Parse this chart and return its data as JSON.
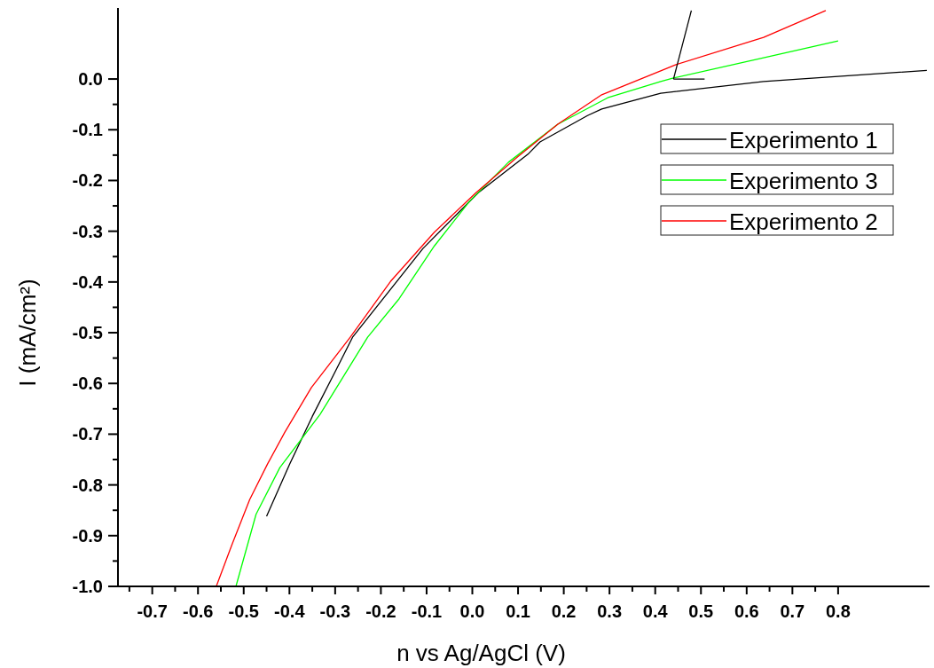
{
  "chart_data": {
    "type": "line",
    "xlabel": "n vs Ag/AgCl (V)",
    "ylabel": "I (mA/cm²)",
    "xlim": [
      -0.775,
      1.0
    ],
    "ylim": [
      -1.0,
      0.14
    ],
    "xticks": [
      {
        "value": -0.75,
        "label": null
      },
      -0.7,
      {
        "value": -0.65,
        "label": null
      },
      -0.6,
      {
        "value": -0.55,
        "label": null
      },
      -0.5,
      {
        "value": -0.45,
        "label": null
      },
      -0.4,
      {
        "value": -0.35,
        "label": null
      },
      -0.3,
      {
        "value": -0.25,
        "label": null
      },
      -0.2,
      {
        "value": -0.15,
        "label": null
      },
      -0.1,
      {
        "value": -0.05,
        "label": null
      },
      {
        "value": 0,
        "label": "0.0"
      },
      {
        "value": 0.05,
        "label": null
      },
      0.1,
      {
        "value": 0.15,
        "label": null
      },
      0.2,
      {
        "value": 0.25,
        "label": null
      },
      0.3,
      {
        "value": 0.35,
        "label": null
      },
      0.4,
      {
        "value": 0.45,
        "label": null
      },
      0.5,
      {
        "value": 0.55,
        "label": null
      },
      0.6,
      {
        "value": 0.65,
        "label": null
      },
      0.7,
      {
        "value": 0.75,
        "label": null
      },
      0.8
    ],
    "yticks": [
      {
        "value": -1,
        "label": "-1.0"
      },
      {
        "value": -0.95,
        "label": null
      },
      -0.9,
      {
        "value": -0.85,
        "label": null
      },
      -0.8,
      {
        "value": -0.75,
        "label": null
      },
      -0.7,
      {
        "value": -0.65,
        "label": null
      },
      -0.6,
      {
        "value": -0.55,
        "label": null
      },
      -0.5,
      {
        "value": -0.45,
        "label": null
      },
      -0.4,
      {
        "value": -0.35,
        "label": null
      },
      -0.3,
      {
        "value": -0.25,
        "label": null
      },
      -0.2,
      {
        "value": -0.15,
        "label": null
      },
      -0.1,
      {
        "value": -0.05,
        "label": null
      },
      {
        "value": 0,
        "label": "0.0"
      }
    ],
    "grid": false,
    "legend": "top right",
    "marker": "none",
    "line_style": "solid",
    "series": [
      {
        "name": "Experimento 1",
        "color": "#000000",
        "x": [
          -0.45,
          -0.4,
          -0.35,
          -0.3,
          -0.262,
          -0.108,
          0.013,
          0.123,
          0.148,
          0.252,
          0.283,
          0.412,
          0.637,
          0.994
        ],
        "values": [
          -0.862,
          -0.76,
          -0.665,
          -0.577,
          -0.509,
          -0.334,
          -0.224,
          -0.147,
          -0.124,
          -0.072,
          -0.059,
          -0.028,
          -0.005,
          0.017
        ]
      },
      {
        "name": "Experimento 3",
        "color": "#00ff00",
        "x": [
          -0.517,
          -0.473,
          -0.421,
          -0.333,
          -0.229,
          -0.16,
          -0.083,
          -0.006,
          0.079,
          0.187,
          0.296,
          0.412,
          0.44,
          0.637,
          0.8
        ],
        "values": [
          -1.0,
          -0.858,
          -0.766,
          -0.661,
          -0.509,
          -0.433,
          -0.329,
          -0.241,
          -0.164,
          -0.089,
          -0.037,
          -0.005,
          0.002,
          0.042,
          0.075
        ]
      },
      {
        "name": "Experimento 2",
        "color": "#ff0000",
        "x": [
          -0.56,
          -0.525,
          -0.487,
          -0.448,
          -0.41,
          -0.352,
          -0.267,
          -0.179,
          -0.083,
          0.008,
          0.098,
          0.187,
          0.283,
          0.412,
          0.444,
          0.637,
          0.773
        ],
        "values": [
          -1.0,
          -0.916,
          -0.829,
          -0.759,
          -0.696,
          -0.608,
          -0.509,
          -0.399,
          -0.302,
          -0.224,
          -0.154,
          -0.089,
          -0.031,
          0.016,
          0.028,
          0.082,
          0.135
        ]
      },
      {
        "color": "#000000",
        "x": [
          0.44,
          0.508
        ],
        "values": [
          0,
          0
        ]
      },
      {
        "color": "#000000",
        "x": [
          0.44,
          0.479
        ],
        "values": [
          0,
          0.135
        ]
      }
    ]
  }
}
